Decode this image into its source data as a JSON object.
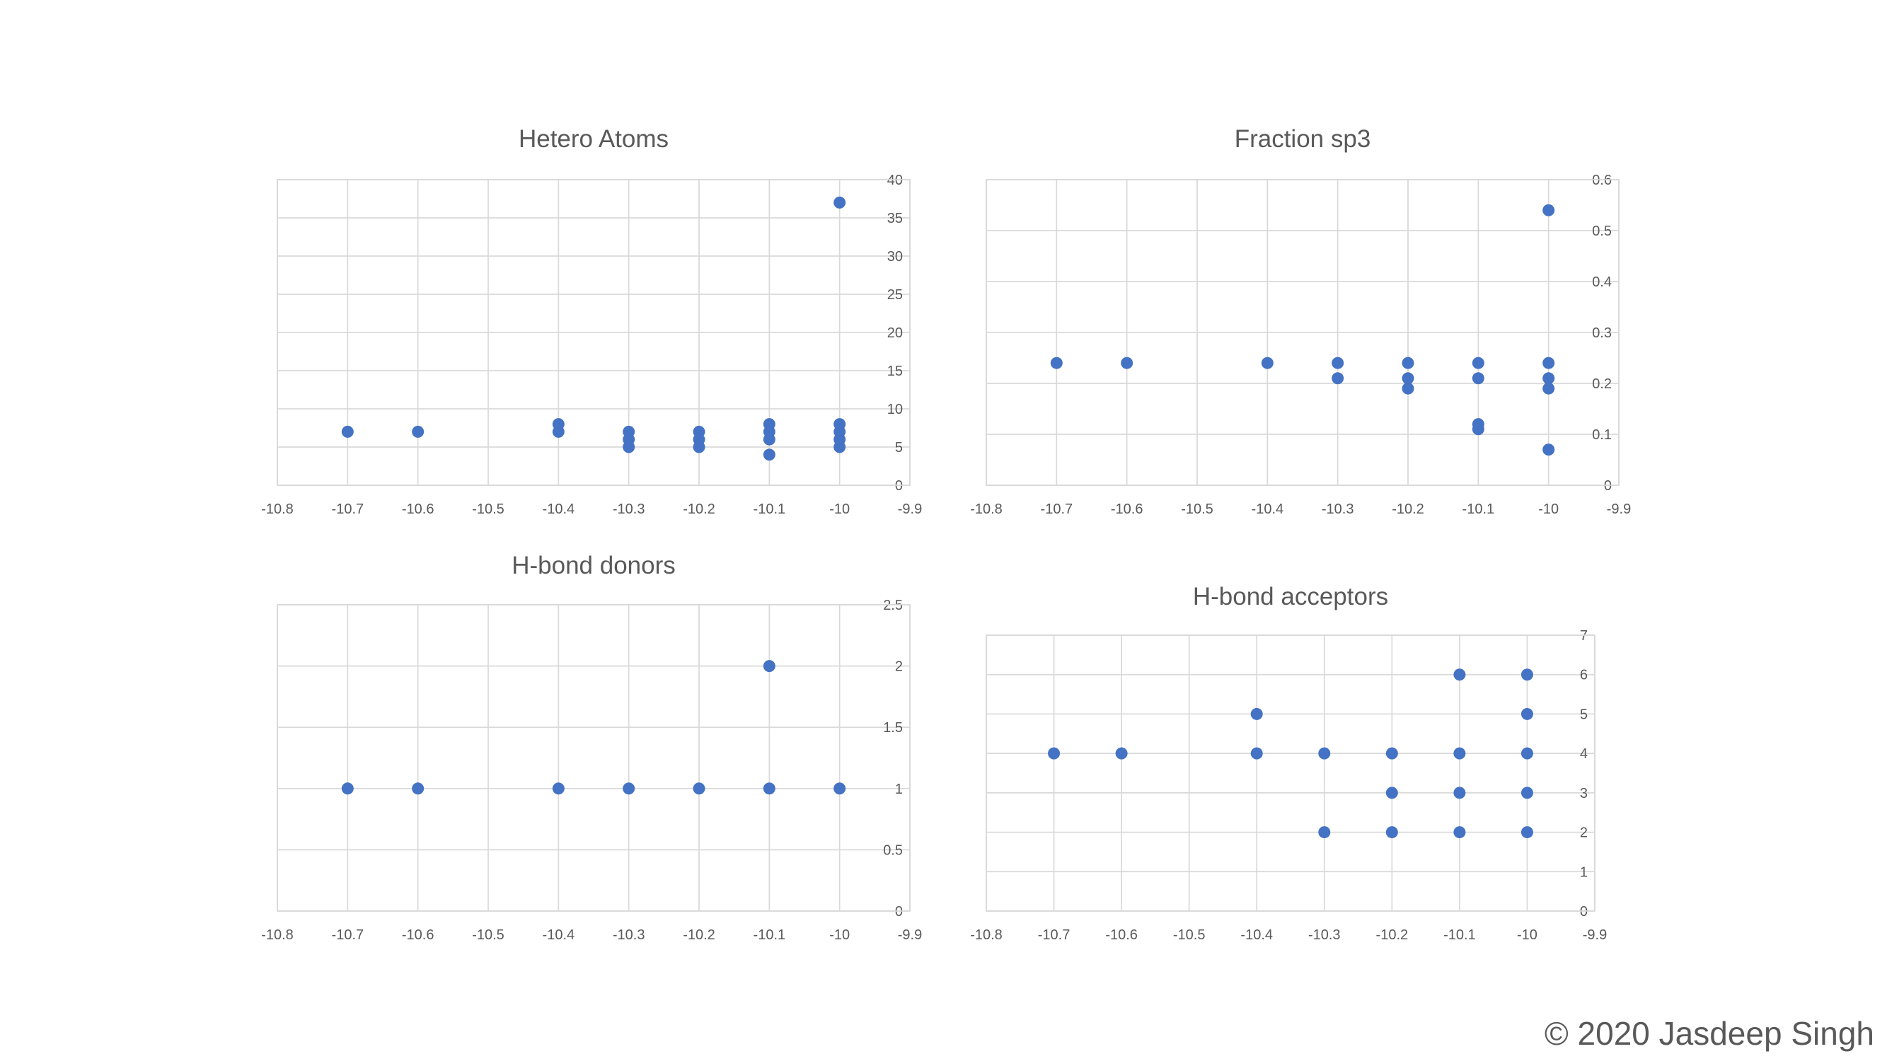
{
  "copyright": "© 2020 Jasdeep Singh",
  "colors": {
    "marker": "#4472C4",
    "grid": "#D9D9D9",
    "text": "#595959"
  },
  "chart_data": [
    {
      "type": "scatter",
      "title": "Hetero Atoms",
      "xlim": [
        -10.8,
        -9.9
      ],
      "x_ticks": [
        "-10.8",
        "-10.7",
        "-10.6",
        "-10.5",
        "-10.4",
        "-10.3",
        "-10.2",
        "-10.1",
        "-10",
        "-9.9"
      ],
      "ylim": [
        0,
        40
      ],
      "y_ticks": [
        "0",
        "5",
        "10",
        "15",
        "20",
        "25",
        "30",
        "35",
        "40"
      ],
      "y_axis_side": "right",
      "grid": true,
      "points": [
        [
          -10.7,
          7
        ],
        [
          -10.6,
          7
        ],
        [
          -10.4,
          8
        ],
        [
          -10.4,
          7
        ],
        [
          -10.3,
          7
        ],
        [
          -10.3,
          6
        ],
        [
          -10.3,
          5
        ],
        [
          -10.2,
          7
        ],
        [
          -10.2,
          6
        ],
        [
          -10.2,
          5
        ],
        [
          -10.1,
          8
        ],
        [
          -10.1,
          7
        ],
        [
          -10.1,
          6
        ],
        [
          -10.1,
          4
        ],
        [
          -10.0,
          37
        ],
        [
          -10.0,
          8
        ],
        [
          -10.0,
          7
        ],
        [
          -10.0,
          6
        ],
        [
          -10.0,
          5
        ]
      ]
    },
    {
      "type": "scatter",
      "title": "Fraction sp3",
      "xlim": [
        -10.8,
        -9.9
      ],
      "x_ticks": [
        "-10.8",
        "-10.7",
        "-10.6",
        "-10.5",
        "-10.4",
        "-10.3",
        "-10.2",
        "-10.1",
        "-10",
        "-9.9"
      ],
      "ylim": [
        0,
        0.6
      ],
      "y_ticks": [
        "0",
        "0.1",
        "0.2",
        "0.3",
        "0.4",
        "0.5",
        "0.6"
      ],
      "y_axis_side": "right",
      "grid": true,
      "points": [
        [
          -10.7,
          0.24
        ],
        [
          -10.6,
          0.24
        ],
        [
          -10.4,
          0.24
        ],
        [
          -10.3,
          0.24
        ],
        [
          -10.3,
          0.21
        ],
        [
          -10.2,
          0.24
        ],
        [
          -10.2,
          0.21
        ],
        [
          -10.2,
          0.19
        ],
        [
          -10.1,
          0.24
        ],
        [
          -10.1,
          0.21
        ],
        [
          -10.1,
          0.12
        ],
        [
          -10.1,
          0.11
        ],
        [
          -10.0,
          0.54
        ],
        [
          -10.0,
          0.24
        ],
        [
          -10.0,
          0.21
        ],
        [
          -10.0,
          0.19
        ],
        [
          -10.0,
          0.07
        ]
      ]
    },
    {
      "type": "scatter",
      "title": "H-bond donors",
      "xlim": [
        -10.8,
        -9.9
      ],
      "x_ticks": [
        "-10.8",
        "-10.7",
        "-10.6",
        "-10.5",
        "-10.4",
        "-10.3",
        "-10.2",
        "-10.1",
        "-10",
        "-9.9"
      ],
      "ylim": [
        0,
        2.5
      ],
      "y_ticks": [
        "0",
        "0.5",
        "1",
        "1.5",
        "2",
        "2.5"
      ],
      "y_axis_side": "right",
      "grid": true,
      "points": [
        [
          -10.7,
          1
        ],
        [
          -10.6,
          1
        ],
        [
          -10.4,
          1
        ],
        [
          -10.3,
          1
        ],
        [
          -10.2,
          1
        ],
        [
          -10.1,
          2
        ],
        [
          -10.1,
          1
        ],
        [
          -10.0,
          1
        ]
      ]
    },
    {
      "type": "scatter",
      "title": "H-bond acceptors",
      "xlim": [
        -10.8,
        -9.9
      ],
      "x_ticks": [
        "-10.8",
        "-10.7",
        "-10.6",
        "-10.5",
        "-10.4",
        "-10.3",
        "-10.2",
        "-10.1",
        "-10",
        "-9.9"
      ],
      "ylim": [
        0,
        7
      ],
      "y_ticks": [
        "0",
        "1",
        "2",
        "3",
        "4",
        "5",
        "6",
        "7"
      ],
      "y_axis_side": "right",
      "grid": true,
      "points": [
        [
          -10.7,
          4
        ],
        [
          -10.6,
          4
        ],
        [
          -10.4,
          5
        ],
        [
          -10.4,
          4
        ],
        [
          -10.3,
          4
        ],
        [
          -10.3,
          2
        ],
        [
          -10.2,
          4
        ],
        [
          -10.2,
          3
        ],
        [
          -10.2,
          2
        ],
        [
          -10.1,
          6
        ],
        [
          -10.1,
          4
        ],
        [
          -10.1,
          3
        ],
        [
          -10.1,
          2
        ],
        [
          -10.0,
          6
        ],
        [
          -10.0,
          5
        ],
        [
          -10.0,
          4
        ],
        [
          -10.0,
          3
        ],
        [
          -10.0,
          2
        ]
      ]
    }
  ]
}
